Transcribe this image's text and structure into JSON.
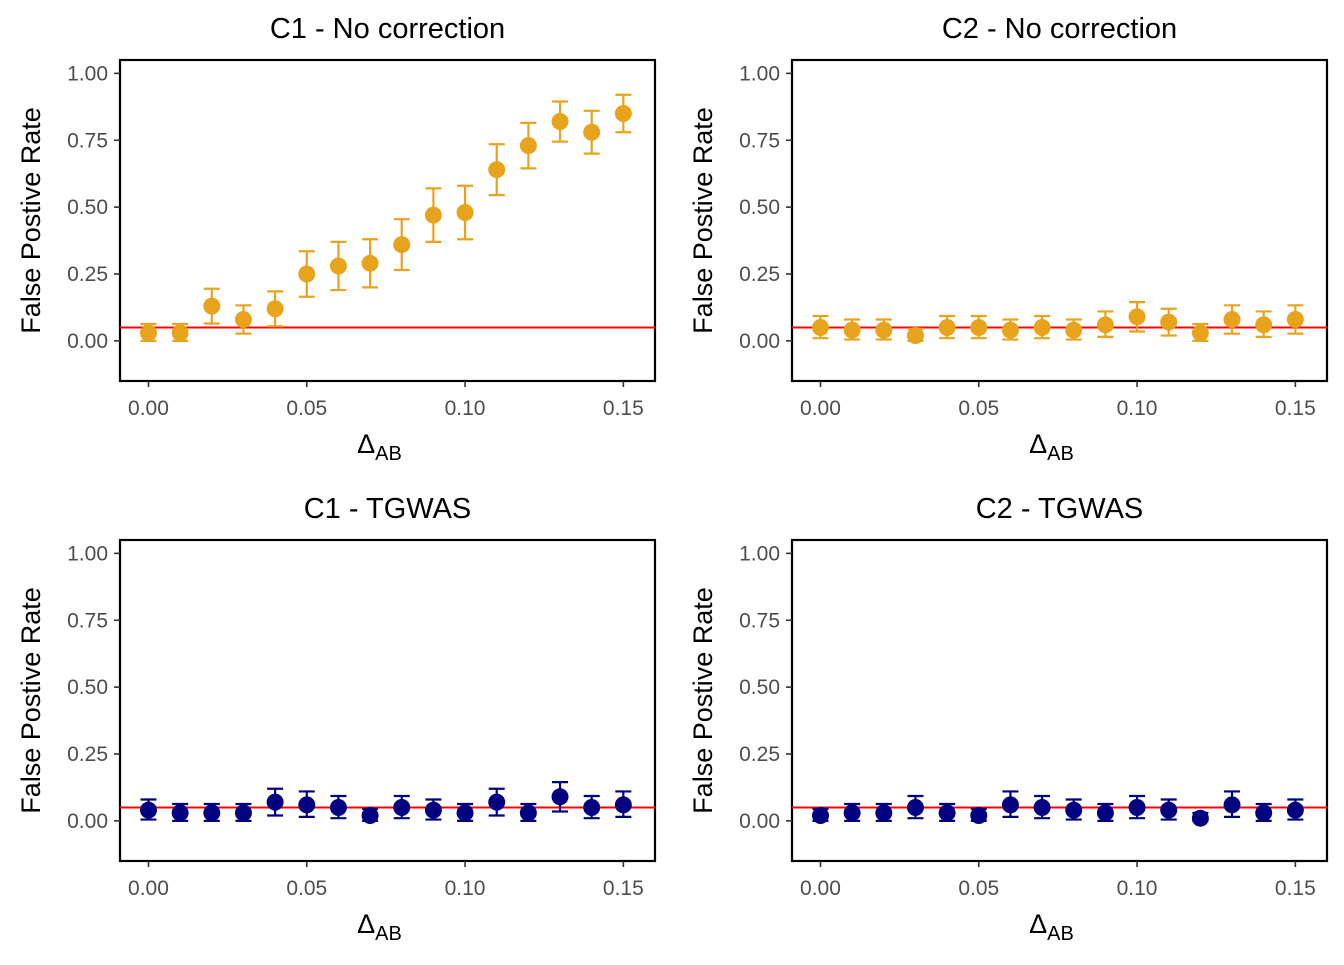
{
  "chart_data": [
    {
      "type": "scatter",
      "title": "C1 - No correction",
      "xlabel": "Δ",
      "xlabel_sub": "AB",
      "ylabel": "False Postive Rate",
      "xlim": [
        -0.009,
        0.16
      ],
      "ylim": [
        -0.15,
        1.05
      ],
      "xticks": [
        "0.00",
        "0.05",
        "0.10",
        "0.15"
      ],
      "yticks": [
        "0.00",
        "0.25",
        "0.50",
        "0.75",
        "1.00"
      ],
      "reference_line": 0.05,
      "reference_color": "#ff0000",
      "point_color": "#e8a31c",
      "x": [
        0.0,
        0.01,
        0.02,
        0.03,
        0.04,
        0.05,
        0.06,
        0.07,
        0.08,
        0.09,
        0.1,
        0.11,
        0.12,
        0.13,
        0.14,
        0.15
      ],
      "y": [
        0.03,
        0.03,
        0.13,
        0.08,
        0.12,
        0.25,
        0.28,
        0.29,
        0.36,
        0.47,
        0.48,
        0.64,
        0.73,
        0.82,
        0.78,
        0.85
      ],
      "err_low": [
        0.0,
        0.0,
        0.065,
        0.027,
        0.055,
        0.165,
        0.19,
        0.2,
        0.265,
        0.37,
        0.38,
        0.545,
        0.645,
        0.745,
        0.7,
        0.78
      ],
      "err_high": [
        0.063,
        0.063,
        0.195,
        0.133,
        0.185,
        0.335,
        0.37,
        0.38,
        0.455,
        0.57,
        0.58,
        0.735,
        0.815,
        0.895,
        0.86,
        0.92
      ]
    },
    {
      "type": "scatter",
      "title": "C2 - No correction",
      "xlabel": "Δ",
      "xlabel_sub": "AB",
      "ylabel": "False Postive Rate",
      "xlim": [
        -0.009,
        0.16
      ],
      "ylim": [
        -0.15,
        1.05
      ],
      "xticks": [
        "0.00",
        "0.05",
        "0.10",
        "0.15"
      ],
      "yticks": [
        "0.00",
        "0.25",
        "0.50",
        "0.75",
        "1.00"
      ],
      "reference_line": 0.05,
      "reference_color": "#ff0000",
      "point_color": "#e8a31c",
      "x": [
        0.0,
        0.01,
        0.02,
        0.03,
        0.04,
        0.05,
        0.06,
        0.07,
        0.08,
        0.09,
        0.1,
        0.11,
        0.12,
        0.13,
        0.14,
        0.15
      ],
      "y": [
        0.05,
        0.04,
        0.04,
        0.02,
        0.05,
        0.05,
        0.04,
        0.05,
        0.04,
        0.06,
        0.09,
        0.07,
        0.03,
        0.08,
        0.06,
        0.08
      ],
      "err_low": [
        0.01,
        0.005,
        0.005,
        0.0,
        0.01,
        0.01,
        0.005,
        0.01,
        0.005,
        0.015,
        0.035,
        0.02,
        0.0,
        0.027,
        0.015,
        0.027
      ],
      "err_high": [
        0.093,
        0.08,
        0.08,
        0.045,
        0.093,
        0.093,
        0.08,
        0.093,
        0.08,
        0.11,
        0.145,
        0.12,
        0.063,
        0.133,
        0.11,
        0.133
      ]
    },
    {
      "type": "scatter",
      "title": "C1 - TGWAS",
      "xlabel": "Δ",
      "xlabel_sub": "AB",
      "ylabel": "False Postive Rate",
      "xlim": [
        -0.009,
        0.16
      ],
      "ylim": [
        -0.15,
        1.05
      ],
      "xticks": [
        "0.00",
        "0.05",
        "0.10",
        "0.15"
      ],
      "yticks": [
        "0.00",
        "0.25",
        "0.50",
        "0.75",
        "1.00"
      ],
      "reference_line": 0.05,
      "reference_color": "#ff0000",
      "point_color": "#000080",
      "x": [
        0.0,
        0.01,
        0.02,
        0.03,
        0.04,
        0.05,
        0.06,
        0.07,
        0.08,
        0.09,
        0.1,
        0.11,
        0.12,
        0.13,
        0.14,
        0.15
      ],
      "y": [
        0.04,
        0.03,
        0.03,
        0.03,
        0.07,
        0.06,
        0.05,
        0.02,
        0.05,
        0.04,
        0.03,
        0.07,
        0.03,
        0.09,
        0.05,
        0.06
      ],
      "err_low": [
        0.005,
        0.0,
        0.0,
        0.0,
        0.02,
        0.015,
        0.01,
        0.0,
        0.01,
        0.005,
        0.0,
        0.02,
        0.0,
        0.035,
        0.01,
        0.015
      ],
      "err_high": [
        0.08,
        0.063,
        0.063,
        0.063,
        0.12,
        0.11,
        0.093,
        0.045,
        0.093,
        0.08,
        0.063,
        0.12,
        0.063,
        0.145,
        0.093,
        0.11
      ]
    },
    {
      "type": "scatter",
      "title": "C2 - TGWAS",
      "xlabel": "Δ",
      "xlabel_sub": "AB",
      "ylabel": "False Postive Rate",
      "xlim": [
        -0.009,
        0.16
      ],
      "ylim": [
        -0.15,
        1.05
      ],
      "xticks": [
        "0.00",
        "0.05",
        "0.10",
        "0.15"
      ],
      "yticks": [
        "0.00",
        "0.25",
        "0.50",
        "0.75",
        "1.00"
      ],
      "reference_line": 0.05,
      "reference_color": "#ff0000",
      "point_color": "#000080",
      "x": [
        0.0,
        0.01,
        0.02,
        0.03,
        0.04,
        0.05,
        0.06,
        0.07,
        0.08,
        0.09,
        0.1,
        0.11,
        0.12,
        0.13,
        0.14,
        0.15
      ],
      "y": [
        0.02,
        0.03,
        0.03,
        0.05,
        0.03,
        0.02,
        0.06,
        0.05,
        0.04,
        0.03,
        0.05,
        0.04,
        0.01,
        0.06,
        0.03,
        0.04
      ],
      "err_low": [
        0.0,
        0.0,
        0.0,
        0.01,
        0.0,
        0.0,
        0.015,
        0.01,
        0.005,
        0.0,
        0.01,
        0.005,
        0.0,
        0.015,
        0.0,
        0.005
      ],
      "err_high": [
        0.045,
        0.063,
        0.063,
        0.093,
        0.063,
        0.045,
        0.11,
        0.093,
        0.08,
        0.063,
        0.093,
        0.08,
        0.03,
        0.11,
        0.063,
        0.08
      ]
    }
  ]
}
